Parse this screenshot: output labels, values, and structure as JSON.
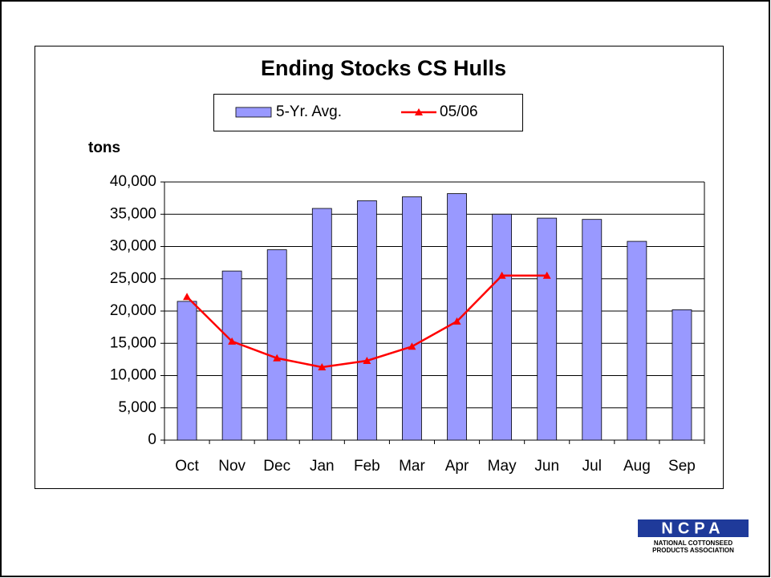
{
  "chart_data": {
    "type": "bar_line",
    "title": "Ending Stocks CS Hulls",
    "y_label": "tons",
    "categories": [
      "Oct",
      "Nov",
      "Dec",
      "Jan",
      "Feb",
      "Mar",
      "Apr",
      "May",
      "Jun",
      "Jul",
      "Aug",
      "Sep"
    ],
    "series": [
      {
        "name": "5-Yr. Avg.",
        "type": "bar",
        "color": "#9999ff",
        "values": [
          21500,
          26200,
          29500,
          35900,
          37100,
          37700,
          38200,
          35000,
          34400,
          34200,
          30800,
          20200
        ]
      },
      {
        "name": "05/06",
        "type": "line",
        "color": "#ff0000",
        "values": [
          22200,
          15300,
          12700,
          11300,
          12300,
          14500,
          18400,
          25500,
          25500,
          null,
          null,
          null
        ]
      }
    ],
    "ylim": [
      0,
      40000
    ],
    "yticks": [
      0,
      {
        "value": 5000,
        "label": "5,000"
      },
      {
        "value": 10000,
        "label": "10,000"
      },
      {
        "value": 15000,
        "label": "15,000"
      },
      {
        "value": 20000,
        "label": "20,000"
      },
      {
        "value": 25000,
        "label": "25,000"
      },
      {
        "value": 30000,
        "label": "30,000"
      },
      {
        "value": 35000,
        "label": "35,000"
      },
      {
        "value": 40000,
        "label": "40,000"
      }
    ],
    "grid": true,
    "legend": "top"
  },
  "logo": {
    "name": "NCPA",
    "line1": "NATIONAL COTTONSEED",
    "line2": "PRODUCTS ASSOCIATION"
  }
}
